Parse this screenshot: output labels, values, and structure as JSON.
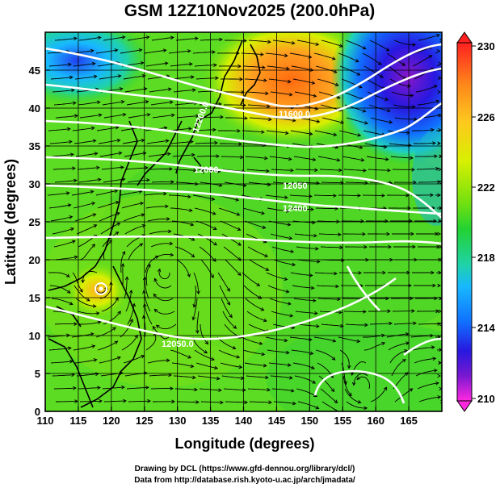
{
  "title": "GSM 12Z10Nov2025 (200.0hPa)",
  "xlabel": "Longitude (degrees)",
  "ylabel": "Latitude  (degrees)",
  "xticks": [
    "110",
    "115",
    "120",
    "125",
    "130",
    "135",
    "140",
    "145",
    "150",
    "155",
    "160",
    "165"
  ],
  "yticks": [
    "0",
    "5",
    "10",
    "15",
    "20",
    "25",
    "30",
    "35",
    "40",
    "45"
  ],
  "colorbar": {
    "labels": [
      "230",
      "226",
      "222",
      "218",
      "214",
      "210"
    ],
    "colors": [
      "#ff2020",
      "#ff8a1a",
      "#ffc81e",
      "#d8f000",
      "#70e010",
      "#22d232",
      "#20d2a8",
      "#18b8ff",
      "#1070ff",
      "#2818e0",
      "#7818d0",
      "#ff28e0"
    ]
  },
  "contour_labels": [
    "11600.0",
    "12000",
    "12050",
    "12400",
    "12050.0",
    "12200.0"
  ],
  "credits": {
    "line1": "Drawing by DCL (https://www.gfd-dennou.org/library/dcl/)",
    "line2": "Data from http://database.rish.kyoto-u.ac.jp/arch/jmadata/"
  },
  "colors": {
    "high": "#ff8a1a",
    "low": "#2818e0",
    "mid": "#22d232"
  }
}
